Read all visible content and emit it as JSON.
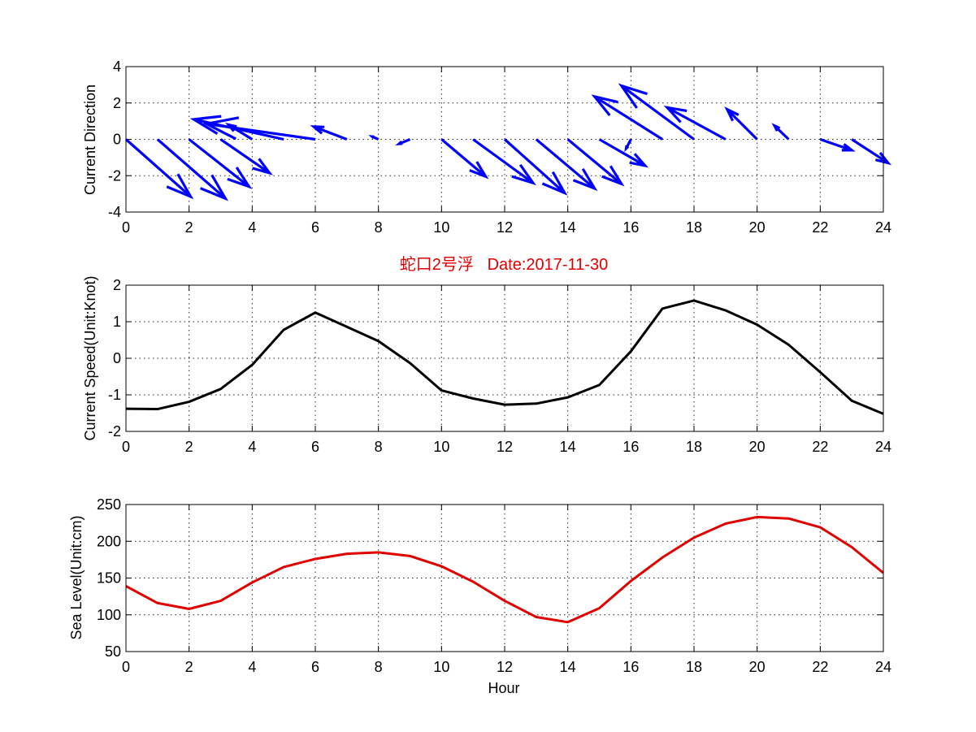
{
  "chart_data": [
    {
      "type": "quiver",
      "title": "",
      "xlabel": "",
      "ylabel": "Current Direction",
      "xlim": [
        0,
        24
      ],
      "ylim": [
        -4,
        4
      ],
      "xticks": [
        0,
        2,
        4,
        6,
        8,
        10,
        12,
        14,
        16,
        18,
        20,
        22,
        24
      ],
      "yticks": [
        -4,
        -2,
        0,
        2,
        4
      ],
      "grid": true,
      "color": "#0000ff",
      "vectors": [
        {
          "x": 0,
          "u": 2.05,
          "v": -3.15
        },
        {
          "x": 1,
          "u": 2.15,
          "v": -3.25
        },
        {
          "x": 2,
          "u": 1.9,
          "v": -2.6
        },
        {
          "x": 3,
          "u": 1.55,
          "v": -1.85
        },
        {
          "x": 4,
          "u": -0.75,
          "v": 0.8
        },
        {
          "x": 5,
          "u": -2.85,
          "v": 1.1
        },
        {
          "x": 6,
          "u": -3.45,
          "v": 0.85
        },
        {
          "x": 7,
          "u": -1.05,
          "v": 0.7
        },
        {
          "x": 8,
          "u": -0.2,
          "v": 0.15
        },
        {
          "x": 9,
          "u": -0.35,
          "v": -0.25
        },
        {
          "x": 10,
          "u": 1.4,
          "v": -2.05
        },
        {
          "x": 11,
          "u": 1.9,
          "v": -2.4
        },
        {
          "x": 12,
          "u": 1.9,
          "v": -2.95
        },
        {
          "x": 13,
          "u": 1.85,
          "v": -2.7
        },
        {
          "x": 14,
          "u": 1.7,
          "v": -2.45
        },
        {
          "x": 15,
          "u": 1.45,
          "v": -1.45
        },
        {
          "x": 16,
          "u": -0.15,
          "v": -0.5
        },
        {
          "x": 17,
          "u": -2.15,
          "v": 2.35
        },
        {
          "x": 18,
          "u": -2.3,
          "v": 2.95
        },
        {
          "x": 19,
          "u": -1.85,
          "v": 1.75
        },
        {
          "x": 20,
          "u": -0.95,
          "v": 1.65
        },
        {
          "x": 21,
          "u": -0.45,
          "v": 0.75
        },
        {
          "x": 22,
          "u": 1.0,
          "v": -0.6
        },
        {
          "x": 23,
          "u": 1.15,
          "v": -1.3
        }
      ]
    },
    {
      "type": "line",
      "title": "蛇口2号浮   Date:2017-11-30",
      "xlabel": "",
      "ylabel": "Current Speed(Unit:Knot)",
      "xlim": [
        0,
        24
      ],
      "ylim": [
        -2,
        2
      ],
      "xticks": [
        0,
        2,
        4,
        6,
        8,
        10,
        12,
        14,
        16,
        18,
        20,
        22,
        24
      ],
      "yticks": [
        -2,
        -1,
        0,
        1,
        2
      ],
      "grid": true,
      "color": "#000000",
      "x": [
        0,
        1,
        2,
        3,
        4,
        5,
        6,
        7,
        8,
        9,
        10,
        11,
        12,
        13,
        14,
        15,
        16,
        17,
        18,
        19,
        20,
        21,
        22,
        23,
        24
      ],
      "values": [
        -1.38,
        -1.39,
        -1.19,
        -0.84,
        -0.18,
        0.78,
        1.25,
        0.86,
        0.47,
        -0.13,
        -0.88,
        -1.1,
        -1.27,
        -1.24,
        -1.07,
        -0.73,
        0.19,
        1.36,
        1.58,
        1.31,
        0.92,
        0.37,
        -0.38,
        -1.16,
        -1.52
      ]
    },
    {
      "type": "line",
      "title": "",
      "xlabel": "Hour",
      "ylabel": "Sea Level(Unit:cm)",
      "xlim": [
        0,
        24
      ],
      "ylim": [
        50,
        250
      ],
      "xticks": [
        0,
        2,
        4,
        6,
        8,
        10,
        12,
        14,
        16,
        18,
        20,
        22,
        24
      ],
      "yticks": [
        50,
        100,
        150,
        200,
        250
      ],
      "grid": true,
      "color": "#e00000",
      "x": [
        0,
        1,
        2,
        3,
        4,
        5,
        6,
        7,
        8,
        9,
        10,
        11,
        12,
        13,
        14,
        15,
        16,
        17,
        18,
        19,
        20,
        21,
        22,
        23,
        24
      ],
      "values": [
        139,
        116,
        108,
        119,
        144,
        165,
        176,
        183,
        185,
        180,
        166,
        145,
        119,
        97,
        90,
        109,
        146,
        178,
        205,
        224,
        233,
        231,
        219,
        192,
        157
      ]
    }
  ]
}
